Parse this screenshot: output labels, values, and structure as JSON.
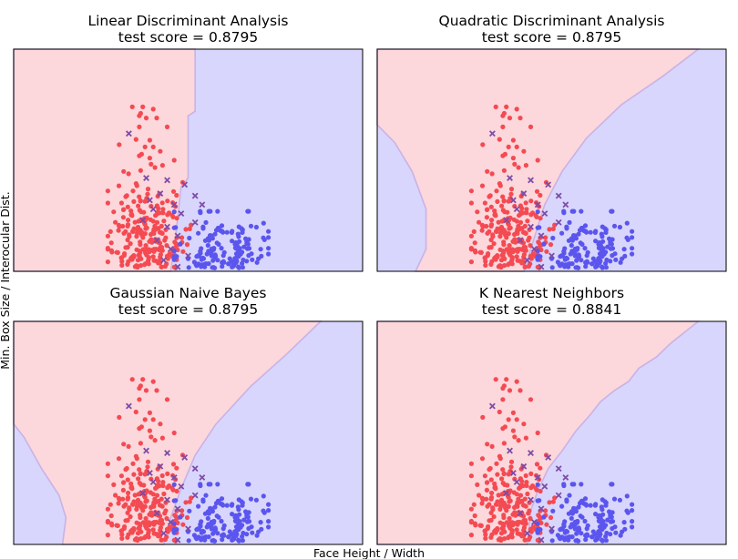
{
  "figure": {
    "xlabel": "Face Height / Width",
    "ylabel": "Min. Box Size / Interocular Dist."
  },
  "colors": {
    "class_red_region": "#fcd7db",
    "class_blue_region": "#d8d6fc",
    "boundary": "#c9b2e6",
    "red_point": "#f44a52",
    "blue_point": "#5b55ee",
    "misclassified_marker": "#7d4ca6"
  },
  "chart_data": [
    {
      "type": "scatter",
      "title": "Linear Discriminant Analysis",
      "subtitle": "test score = 0.8795",
      "boundary": "linear",
      "grid": false,
      "ticks": "none"
    },
    {
      "type": "scatter",
      "title": "Quadratic Discriminant Analysis",
      "subtitle": "test score = 0.8795",
      "boundary": "quadratic",
      "grid": false,
      "ticks": "none"
    },
    {
      "type": "scatter",
      "title": "Gaussian Naive Bayes",
      "subtitle": "test score = 0.8795",
      "boundary": "quadratic",
      "grid": false,
      "ticks": "none"
    },
    {
      "type": "scatter",
      "title": "K Nearest Neighbors",
      "subtitle": "test score = 0.8841",
      "boundary": "nonparametric",
      "grid": false,
      "ticks": "none"
    }
  ]
}
